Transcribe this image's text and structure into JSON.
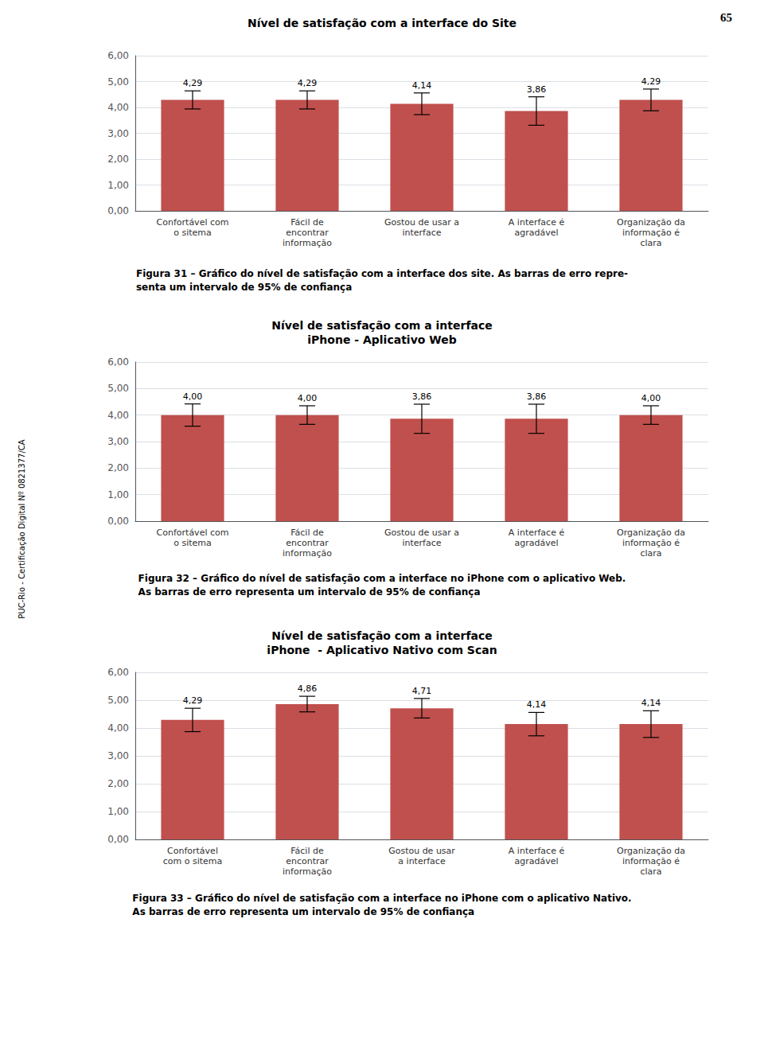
{
  "page_number": "65",
  "side_label": "PUC-Rio - Certificação Digital Nº 0821377/CA",
  "chart_data": [
    {
      "type": "bar",
      "title": "Nível de satisfação com a interface do Site",
      "caption": "Figura 31 – Gráfico do nível de satisfação com a interface dos site. As barras de erro repre-\nsenta um intervalo de 95% de confiança",
      "categories": [
        "Confortável com\no sitema",
        "Fácil de\nencontrar\ninformação",
        "Gostou de usar a\ninterface",
        "A interface é\nagradável",
        "Organização da\ninformação é\nclara"
      ],
      "values": [
        4.29,
        4.29,
        4.14,
        3.86,
        4.29
      ],
      "value_labels": [
        "4,29",
        "4,29",
        "4,14",
        "3,86",
        "4,29"
      ],
      "errors": [
        0.35,
        0.35,
        0.42,
        0.55,
        0.42
      ],
      "color": "#c0504d",
      "data_labels": true,
      "grid": true,
      "ylim": [
        0,
        6
      ],
      "yticks": [
        {
          "value": 0,
          "label": "0,00"
        },
        {
          "value": 1,
          "label": "1,00"
        },
        {
          "value": 2,
          "label": "2,00"
        },
        {
          "value": 3,
          "label": "3,00"
        },
        {
          "value": 4,
          "label": "4,00"
        },
        {
          "value": 5,
          "label": "5,00"
        },
        {
          "value": 6,
          "label": "6,00"
        }
      ]
    },
    {
      "type": "bar",
      "title": "Nível de satisfação com a interface\niPhone - Aplicativo Web",
      "caption": "Figura 32 – Gráfico do nível de satisfação com a interface no iPhone com o aplicativo Web.\nAs barras de erro representa um intervalo de 95% de confiança",
      "categories": [
        "Confortável com\no sitema",
        "Fácil de\nencontrar\ninformação",
        "Gostou de usar a\ninterface",
        "A interface é\nagradável",
        "Organização da\ninformação é\nclara"
      ],
      "values": [
        4.0,
        4.0,
        3.86,
        3.86,
        4.0
      ],
      "value_labels": [
        "4,00",
        "4,00",
        "3,86",
        "3,86",
        "4,00"
      ],
      "errors": [
        0.42,
        0.35,
        0.55,
        0.55,
        0.35
      ],
      "color": "#c0504d",
      "data_labels": true,
      "grid": true,
      "ylim": [
        0,
        6
      ],
      "yticks": [
        {
          "value": 0,
          "label": "0,00"
        },
        {
          "value": 1,
          "label": "1,00"
        },
        {
          "value": 2,
          "label": "2,00"
        },
        {
          "value": 3,
          "label": "3,00"
        },
        {
          "value": 4,
          "label": "4,00"
        },
        {
          "value": 5,
          "label": "5,00"
        },
        {
          "value": 6,
          "label": "6,00"
        }
      ]
    },
    {
      "type": "bar",
      "title": "Nível de satisfação com a interface\niPhone  - Aplicativo Nativo com Scan",
      "caption": "Figura 33 – Gráfico do nível de satisfação com a interface no iPhone com o aplicativo Nativo.\nAs barras de erro representa um intervalo de 95% de confiança",
      "categories": [
        "Confortável\ncom o sitema",
        "Fácil de\nencontrar\ninformação",
        "Gostou de usar\na interface",
        "A interface é\nagradável",
        "Organização da\ninformação é\nclara"
      ],
      "values": [
        4.29,
        4.86,
        4.71,
        4.14,
        4.14
      ],
      "value_labels": [
        "4,29",
        "4,86",
        "4,71",
        "4,14",
        "4,14"
      ],
      "errors": [
        0.42,
        0.28,
        0.35,
        0.42,
        0.48
      ],
      "color": "#c0504d",
      "data_labels": true,
      "grid": true,
      "ylim": [
        0,
        6
      ],
      "yticks": [
        {
          "value": 0,
          "label": "0,00"
        },
        {
          "value": 1,
          "label": "1,00"
        },
        {
          "value": 2,
          "label": "2,00"
        },
        {
          "value": 3,
          "label": "3,00"
        },
        {
          "value": 4,
          "label": "4,00"
        },
        {
          "value": 5,
          "label": "5,00"
        },
        {
          "value": 6,
          "label": "6,00"
        }
      ]
    }
  ]
}
